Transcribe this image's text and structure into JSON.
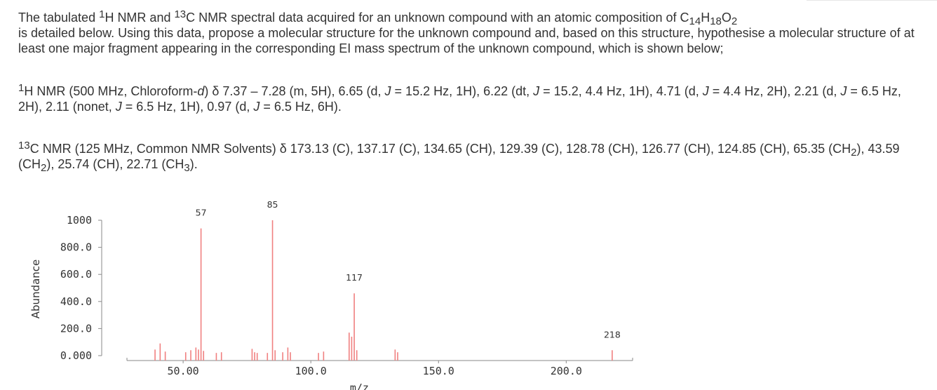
{
  "question": {
    "intro_part1": "The tabulated ",
    "intro_h_sup": "1",
    "intro_part2": "H NMR and ",
    "intro_c_sup": "13",
    "intro_part3": "C NMR spectral data acquired for an unknown compound with an atomic composition of C",
    "formula_c_sub": "14",
    "formula_h": "H",
    "formula_h_sub": "18",
    "formula_o": "O",
    "formula_o_sub": "2",
    "intro_part4": " is detailed below. Using this data, propose a molecular structure for the unknown compound and, based on this structure, hypothesise a molecular structure of at least one major fragment appearing in the corresponding EI mass spectrum of the unknown compound, which is shown below;"
  },
  "h_nmr": {
    "sup": "1",
    "text_a": "H NMR (500 MHz, Chloroform-",
    "solvent_d": "d",
    "text_b": ") δ 7.37 – 7.28 (m, 5H), 6.65 (d, ",
    "j1": "J",
    "text_c": " = 15.2 Hz, 1H), 6.22 (dt, ",
    "j2": "J",
    "text_d": " = 15.2, 4.4 Hz, 1H), 4.71 (d, ",
    "j3": "J",
    "text_e": " = 4.4 Hz, 2H), 2.21 (d, ",
    "j4": "J",
    "text_f": " = 6.5 Hz, 2H), 2.11 (nonet, ",
    "j5": "J",
    "text_g": " = 6.5 Hz, 1H), 0.97 (d, ",
    "j6": "J",
    "text_h": " = 6.5 Hz, 6H)."
  },
  "c_nmr": {
    "sup": "13",
    "text_a": "C NMR (125 MHz, Common NMR Solvents) δ 173.13 (C), 137.17 (C), 134.65 (CH), 129.39 (C), 128.78 (CH), 126.77 (CH), 124.85 (CH), 65.35 (CH",
    "sub1": "2",
    "text_b": "), 43.59 (CH",
    "sub2": "2",
    "text_c": "), 25.74 (CH), 22.71 (CH",
    "sub3": "3",
    "text_d": ")."
  },
  "colors": {
    "peak": "#f08080",
    "axis": "#333333"
  },
  "chart_data": {
    "type": "bar",
    "title": "",
    "xlabel": "m/z",
    "ylabel": "Abundance",
    "xlim": [
      28,
      226
    ],
    "ylim": [
      0,
      1000
    ],
    "x_ticks": [
      {
        "value": 50,
        "label": "50.00"
      },
      {
        "value": 100,
        "label": "100.0"
      },
      {
        "value": 150,
        "label": "150.0"
      },
      {
        "value": 200,
        "label": "200.0"
      }
    ],
    "y_ticks": [
      {
        "value": 0,
        "label": "0.000"
      },
      {
        "value": 200,
        "label": "200.0"
      },
      {
        "value": 400,
        "label": "400.0"
      },
      {
        "value": 600,
        "label": "600.0"
      },
      {
        "value": 800,
        "label": "800.0"
      },
      {
        "value": 1000,
        "label": "1000"
      }
    ],
    "peaks": [
      {
        "mz": 39,
        "abundance": 45
      },
      {
        "mz": 41,
        "abundance": 90
      },
      {
        "mz": 43,
        "abundance": 30
      },
      {
        "mz": 51,
        "abundance": 25
      },
      {
        "mz": 53,
        "abundance": 40
      },
      {
        "mz": 55,
        "abundance": 60
      },
      {
        "mz": 56,
        "abundance": 45
      },
      {
        "mz": 57,
        "abundance": 940,
        "label": "57"
      },
      {
        "mz": 58,
        "abundance": 35
      },
      {
        "mz": 63,
        "abundance": 20
      },
      {
        "mz": 65,
        "abundance": 25
      },
      {
        "mz": 77,
        "abundance": 50
      },
      {
        "mz": 78,
        "abundance": 25
      },
      {
        "mz": 79,
        "abundance": 20
      },
      {
        "mz": 83,
        "abundance": 20
      },
      {
        "mz": 85,
        "abundance": 1000,
        "label": "85"
      },
      {
        "mz": 86,
        "abundance": 40
      },
      {
        "mz": 89,
        "abundance": 25
      },
      {
        "mz": 91,
        "abundance": 60
      },
      {
        "mz": 92,
        "abundance": 25
      },
      {
        "mz": 103,
        "abundance": 20
      },
      {
        "mz": 105,
        "abundance": 30
      },
      {
        "mz": 115,
        "abundance": 170
      },
      {
        "mz": 116,
        "abundance": 140
      },
      {
        "mz": 117,
        "abundance": 460,
        "label": "117"
      },
      {
        "mz": 118,
        "abundance": 40
      },
      {
        "mz": 133,
        "abundance": 45
      },
      {
        "mz": 134,
        "abundance": 25
      },
      {
        "mz": 218,
        "abundance": 40,
        "label": "218"
      }
    ]
  }
}
